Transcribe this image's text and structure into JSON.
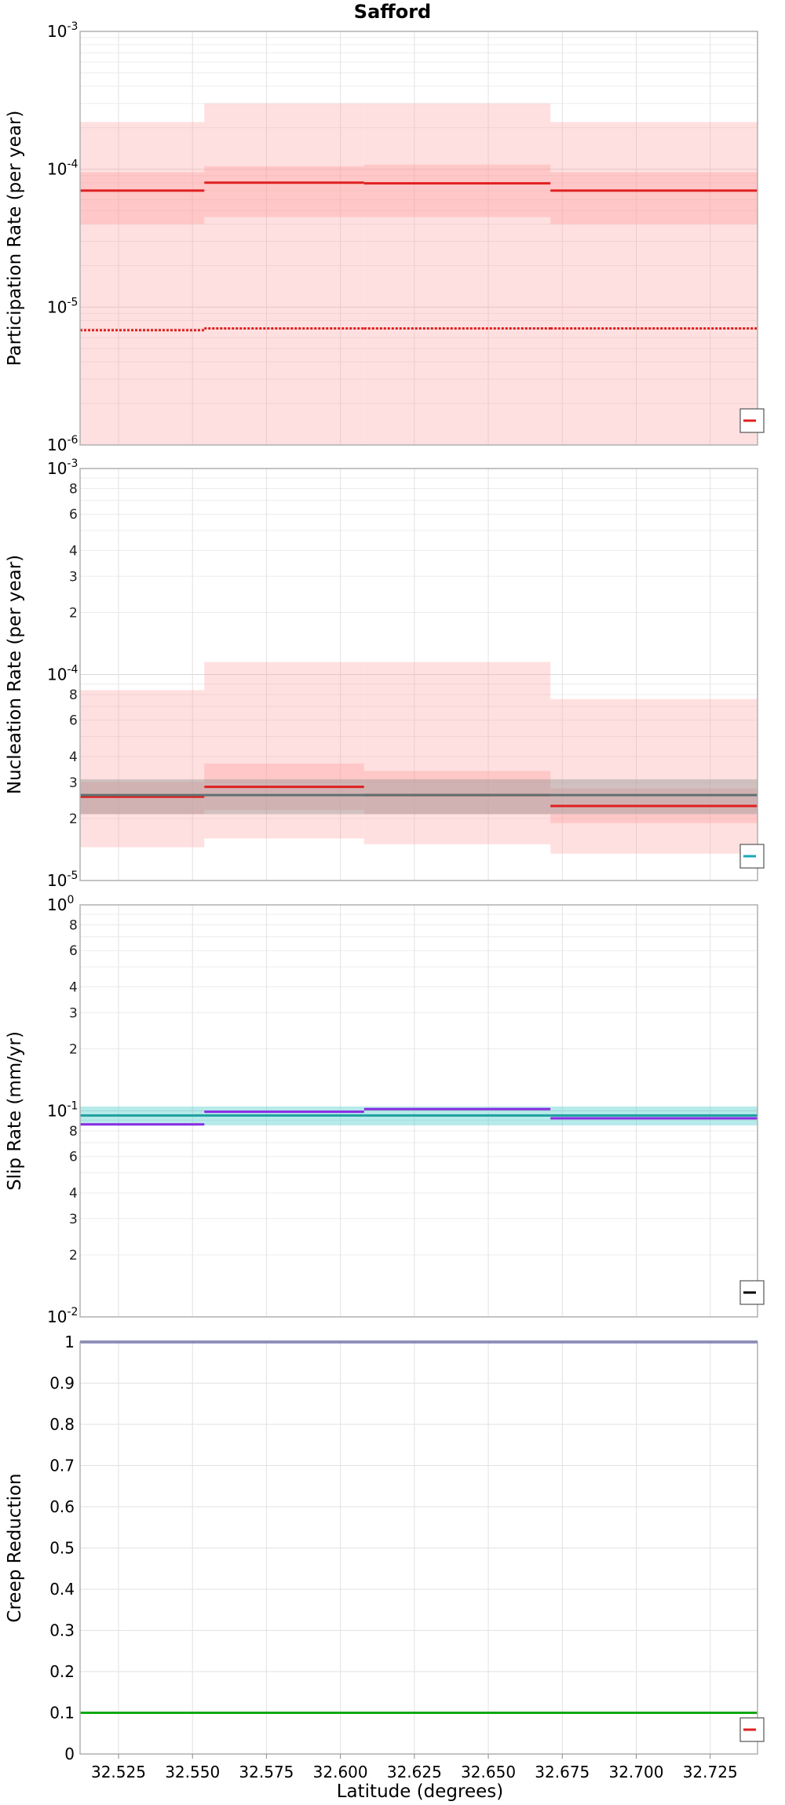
{
  "title": "Safford",
  "xlabel": "Latitude (degrees)",
  "xticks": [
    "32.525",
    "32.550",
    "32.575",
    "32.600",
    "32.625",
    "32.650",
    "32.675",
    "32.700",
    "32.725"
  ],
  "chart_data": [
    {
      "type": "line",
      "title": "Safford",
      "ylabel": "Participation Rate (per year)",
      "yscale": "log",
      "ylim": [
        1e-06,
        0.001
      ],
      "xlim": [
        32.512,
        32.741
      ],
      "grid": true,
      "legend": "bottom-right",
      "ytick_labels": [
        [
          "10",
          "-6"
        ],
        [
          "10",
          "-5"
        ],
        [
          "10",
          "-4"
        ],
        [
          "10",
          "-3"
        ]
      ],
      "segments_x": [
        32.512,
        32.554,
        32.608,
        32.671,
        32.741
      ],
      "bands": [
        {
          "color": "#ff9999",
          "opacity": 0.3,
          "lower": [
            1e-06,
            1e-06,
            1e-06,
            1e-06
          ],
          "upper": [
            0.00022,
            0.0003,
            0.0003,
            0.00022
          ]
        },
        {
          "color": "#ff9999",
          "opacity": 0.35,
          "lower": [
            4e-05,
            4.5e-05,
            4.5e-05,
            4e-05
          ],
          "upper": [
            9.5e-05,
            0.000105,
            0.000108,
            9.5e-05
          ]
        }
      ],
      "series": [
        {
          "color": "#e02020",
          "style": "solid",
          "values": [
            7e-05,
            8e-05,
            7.9e-05,
            7e-05
          ]
        },
        {
          "color": "#e02020",
          "style": "dotted",
          "values": [
            6.8e-06,
            7e-06,
            7e-06,
            7e-06
          ]
        }
      ],
      "legend_color": "#e02020"
    },
    {
      "type": "line",
      "ylabel": "Nucleation Rate (per year)",
      "yscale": "log",
      "ylim": [
        1e-05,
        0.001
      ],
      "xlim": [
        32.512,
        32.741
      ],
      "grid": true,
      "legend": "bottom-right",
      "ytick_labels": [
        [
          "10",
          "-5"
        ],
        [
          "10",
          "-4"
        ],
        [
          "10",
          "-3"
        ]
      ],
      "minor_labels": [
        [
          "2",
          2e-05
        ],
        [
          "3",
          3e-05
        ],
        [
          "4",
          4e-05
        ],
        [
          "6",
          6e-05
        ],
        [
          "8",
          8e-05
        ],
        [
          "2",
          0.0002
        ],
        [
          "3",
          0.0003
        ],
        [
          "4",
          0.0004
        ],
        [
          "6",
          0.0006
        ],
        [
          "8",
          0.0008
        ]
      ],
      "segments_x": [
        32.512,
        32.554,
        32.608,
        32.671,
        32.741
      ],
      "bands": [
        {
          "color": "#ff9999",
          "opacity": 0.3,
          "lower": [
            1.45e-05,
            1.6e-05,
            1.5e-05,
            1.35e-05
          ],
          "upper": [
            8.4e-05,
            0.000115,
            0.000115,
            7.6e-05
          ]
        },
        {
          "color": "#ff9999",
          "opacity": 0.35,
          "lower": [
            2.1e-05,
            2.2e-05,
            2.1e-05,
            1.9e-05
          ],
          "upper": [
            3e-05,
            3.7e-05,
            3.4e-05,
            2.8e-05
          ]
        },
        {
          "color": "#9a9a9a",
          "opacity": 0.45,
          "lower": [
            2.1e-05,
            2.1e-05,
            2.1e-05,
            2.1e-05
          ],
          "upper": [
            3.1e-05,
            3.1e-05,
            3.1e-05,
            3.1e-05
          ]
        }
      ],
      "series": [
        {
          "color": "#e02020",
          "style": "solid",
          "values": [
            2.55e-05,
            2.85e-05,
            2.6e-05,
            2.3e-05
          ]
        },
        {
          "color": "#607070",
          "style": "solid",
          "values": [
            2.6e-05,
            2.6e-05,
            2.6e-05,
            2.6e-05
          ]
        }
      ],
      "legend_color": "#1aa8b8"
    },
    {
      "type": "line",
      "ylabel": "Slip Rate (mm/yr)",
      "yscale": "log",
      "ylim": [
        0.01,
        1
      ],
      "xlim": [
        32.512,
        32.741
      ],
      "grid": true,
      "legend": "bottom-right",
      "ytick_labels": [
        [
          "10",
          "-2"
        ],
        [
          "10",
          "-1"
        ],
        [
          "10",
          "0"
        ]
      ],
      "minor_labels": [
        [
          "2",
          0.02
        ],
        [
          "3",
          0.03
        ],
        [
          "4",
          0.04
        ],
        [
          "6",
          0.06
        ],
        [
          "8",
          0.08
        ],
        [
          "2",
          0.2
        ],
        [
          "3",
          0.3
        ],
        [
          "4",
          0.4
        ],
        [
          "6",
          0.6
        ],
        [
          "8",
          0.8
        ]
      ],
      "segments_x": [
        32.512,
        32.554,
        32.608,
        32.671,
        32.741
      ],
      "bands": [
        {
          "color": "#5fd0d0",
          "opacity": 0.45,
          "lower": [
            0.085,
            0.085,
            0.085,
            0.085
          ],
          "upper": [
            0.105,
            0.105,
            0.105,
            0.105
          ]
        }
      ],
      "series": [
        {
          "color": "#1f9f9f",
          "style": "solid",
          "values": [
            0.095,
            0.095,
            0.095,
            0.095
          ]
        },
        {
          "color": "#8a2be2",
          "style": "solid",
          "values": [
            0.086,
            0.099,
            0.102,
            0.092
          ]
        }
      ],
      "legend_color": "#000000"
    },
    {
      "type": "line",
      "ylabel": "Creep Reduction",
      "yscale": "linear",
      "ylim": [
        0,
        1
      ],
      "xlim": [
        32.512,
        32.741
      ],
      "grid": true,
      "legend": "bottom-right",
      "ytick_labels": [
        "0",
        "0.1",
        "0.2",
        "0.3",
        "0.4",
        "0.5",
        "0.6",
        "0.7",
        "0.8",
        "0.9",
        "1"
      ],
      "segments_x": [
        32.512,
        32.741
      ],
      "bands": [],
      "series": [
        {
          "color": "#2b2b9a",
          "style": "solid",
          "values": [
            1.0
          ]
        },
        {
          "color": "#10a810",
          "style": "solid",
          "values": [
            0.1
          ]
        }
      ],
      "legend_color": "#e02020"
    }
  ]
}
